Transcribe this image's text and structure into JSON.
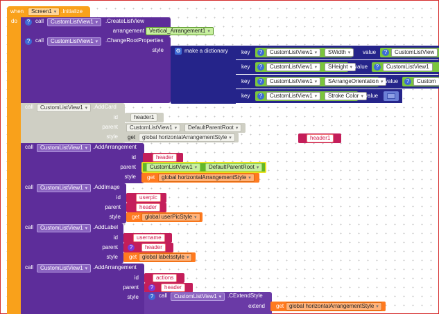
{
  "event": {
    "when": "when",
    "component": "Screen1",
    "event_name": ".Initialize",
    "do": "do"
  },
  "call": "call",
  "get": "get",
  "blocks": {
    "create_list_view": {
      "component": "CustomListView1",
      "method": ".CreateListView",
      "param": "arrangement",
      "value": "Vertical_Arrangement1"
    },
    "change_root": {
      "component": "CustomListView1",
      "method": ".ChangeRootProperties",
      "param": "style",
      "dict_label": "make a dictionary",
      "key": "key",
      "value": "value",
      "entries": [
        {
          "component": "CustomListView1",
          "property": "SWidth",
          "value_component": "CustomListView"
        },
        {
          "component": "CustomListView1",
          "property": "SHeight",
          "value_component": "CustomListView1"
        },
        {
          "component": "CustomListView1",
          "property": "SArrangeOrientation",
          "value_component": "Custom"
        },
        {
          "component": "CustomListView1",
          "property": "Stroke Color",
          "value_component": ""
        }
      ]
    },
    "add_card": {
      "component": "CustomListView1",
      "method": ".AddCard",
      "id_label": "id",
      "id_value": "header1",
      "parent_label": "parent",
      "parent_component": "CustomListView1",
      "parent_property": "DefaultParentRoot",
      "style_label": "style",
      "style_var": "global horizontalArrangementStyle"
    },
    "floating": {
      "text": "header1"
    },
    "add_arrangement_1": {
      "component": "CustomListView1",
      "method": ".AddArrangement",
      "id_label": "id",
      "id_value": "header",
      "parent_label": "parent",
      "parent_component": "CustomListView1",
      "parent_property": "DefaultParentRoot",
      "style_label": "style",
      "style_var": "global horizontalArrangementStyle"
    },
    "add_image": {
      "component": "CustomListView1",
      "method": ".AddImage",
      "id_label": "id",
      "id_value": "userpic",
      "parent_label": "parent",
      "parent_value": "header",
      "style_label": "style",
      "style_var": "global userPicStyle"
    },
    "add_label": {
      "component": "CustomListView1",
      "method": ".AddLabel",
      "id_label": "id",
      "id_value": "username",
      "parent_label": "parent",
      "parent_value": "header",
      "style_label": "style",
      "style_var": "global labelsstyle"
    },
    "add_arrangement_2": {
      "component": "CustomListView1",
      "method": ".AddArrangement",
      "id_label": "id",
      "id_value": "actions",
      "parent_label": "parent",
      "parent_value": "header",
      "style_label": "style",
      "extend_component": "CustomListView1",
      "extend_method": ".CExtendStyle",
      "extend_label": "extend",
      "extend_var": "global horizontalArrangementStyle"
    }
  },
  "colors": {
    "event": "#f9a11b",
    "call": "#5d2d9a",
    "text": "#c41e5a",
    "component": "#62b72a",
    "variable": "#ff7a1f",
    "dictionary": "#25248a",
    "disabled": "#cfcfc4"
  }
}
